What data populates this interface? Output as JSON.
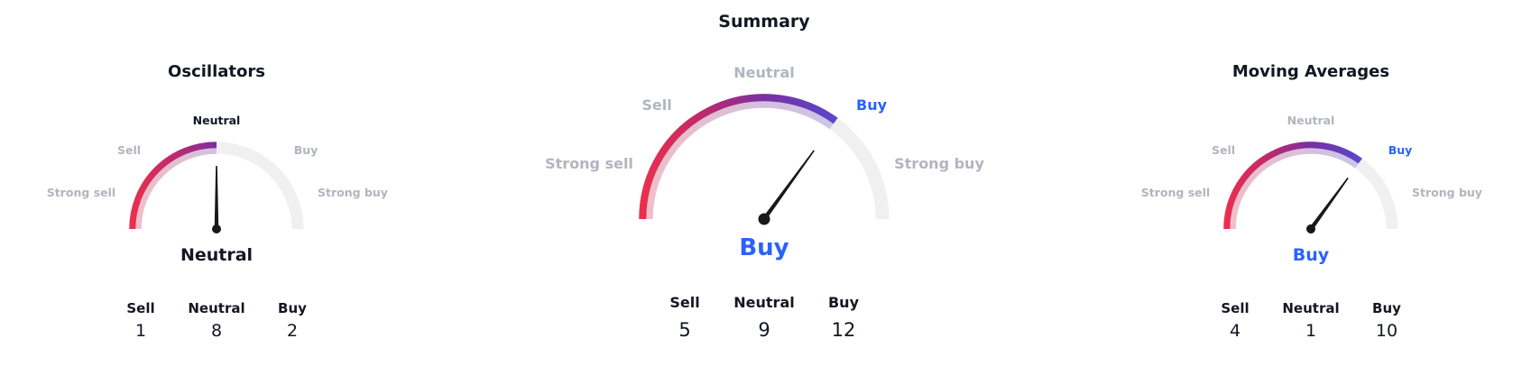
{
  "gauges": [
    {
      "title": "Oscillators",
      "size": "small",
      "active": "neutral",
      "status": "Neutral",
      "needle_deg": 90,
      "labels": {
        "strong_sell": "Strong sell",
        "sell": "Sell",
        "neutral": "Neutral",
        "buy": "Buy",
        "strong_buy": "Strong buy"
      },
      "counts": {
        "headers": [
          "Sell",
          "Neutral",
          "Buy"
        ],
        "values": [
          "1",
          "8",
          "2"
        ]
      }
    },
    {
      "title": "Summary",
      "size": "big",
      "active": "buy",
      "status": "Buy",
      "needle_deg": 54,
      "labels": {
        "strong_sell": "Strong sell",
        "sell": "Sell",
        "neutral": "Neutral",
        "buy": "Buy",
        "strong_buy": "Strong buy"
      },
      "counts": {
        "headers": [
          "Sell",
          "Neutral",
          "Buy"
        ],
        "values": [
          "5",
          "9",
          "12"
        ]
      }
    },
    {
      "title": "Moving Averages",
      "size": "small",
      "active": "buy",
      "status": "Buy",
      "needle_deg": 54,
      "labels": {
        "strong_sell": "Strong sell",
        "sell": "Sell",
        "neutral": "Neutral",
        "buy": "Buy",
        "strong_buy": "Strong buy"
      },
      "counts": {
        "headers": [
          "Sell",
          "Neutral",
          "Buy"
        ],
        "values": [
          "4",
          "1",
          "10"
        ]
      }
    }
  ],
  "colors": {
    "dark": "#131722",
    "muted_label": "#b2b5be",
    "buy_blue": "#2962ff",
    "track": "#f0f0f1",
    "needle": "#17181b",
    "pale_fill_opacity": 0.25,
    "gradient": [
      [
        0,
        "#ed2f4e"
      ],
      [
        0.22,
        "#c62a64"
      ],
      [
        0.5,
        "#7b2fa3"
      ],
      [
        0.78,
        "#5a46c9"
      ],
      [
        1,
        "#2d62f5"
      ]
    ]
  },
  "chart_data": {
    "type": "gauge",
    "scale": [
      "Strong sell",
      "Sell",
      "Neutral",
      "Buy",
      "Strong buy"
    ],
    "gauges": [
      {
        "title": "Oscillators",
        "signal": "Neutral",
        "counts": {
          "sell": 1,
          "neutral": 8,
          "buy": 2
        }
      },
      {
        "title": "Summary",
        "signal": "Buy",
        "counts": {
          "sell": 5,
          "neutral": 9,
          "buy": 12
        }
      },
      {
        "title": "Moving Averages",
        "signal": "Buy",
        "counts": {
          "sell": 4,
          "neutral": 1,
          "buy": 10
        }
      }
    ],
    "needle_angles_deg_above_horizontal": [
      90,
      54,
      54
    ],
    "arc_span_deg": 180,
    "fill_follows_needle": true
  }
}
